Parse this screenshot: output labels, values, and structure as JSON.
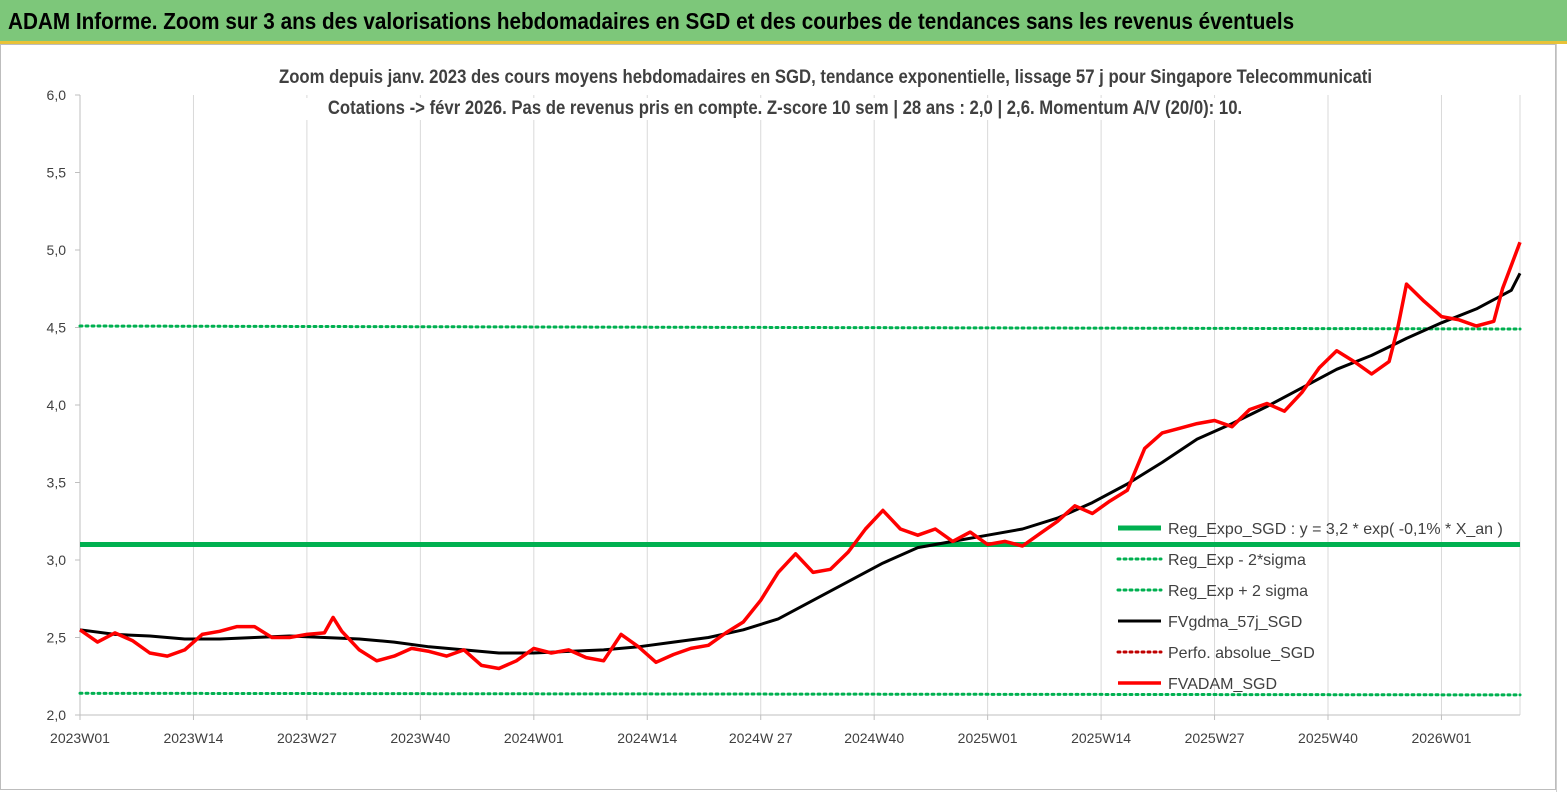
{
  "banner": {
    "title": "ADAM Informe. Zoom sur 3 ans des valorisations hebdomadaires en SGD et des courbes de tendances sans les revenus éventuels"
  },
  "colors": {
    "banner_bg": "#7dc77a",
    "regexpo": "#00b050",
    "fvgdma": "#000000",
    "fvadam": "#ff0000",
    "perfo": "#c00000"
  },
  "chart_data": {
    "type": "line",
    "title": "Zoom depuis janv. 2023 des cours moyens hebdomadaires en SGD, tendance exponentielle, lissage 57 j pour Singapore Telecommunicati",
    "subtitle": "Cotations -> févr 2026.  Pas de revenus pris en compte. Z-score 10 sem  | 28 ans : 2,0 | 2,6. Momentum A/V (20/0): 10.",
    "ylim": [
      2.0,
      6.0
    ],
    "yticks": [
      "2,0",
      "2,5",
      "3,0",
      "3,5",
      "4,0",
      "4,5",
      "5,0",
      "5,5",
      "6,0"
    ],
    "xticks": [
      "2023W01",
      "2023W14",
      "2023W27",
      "2023W40",
      "2024W01",
      "2024W14",
      "2024W 27",
      "2024W40",
      "2025W01",
      "2025W14",
      "2025W27",
      "2025W40",
      "2026W01"
    ],
    "grid": "vertical",
    "legend_position": "right",
    "series": [
      {
        "name": "Reg_Expo_SGD : y = 3,2  * exp( -0,1% *  X_an )",
        "style": "solid-thick",
        "color": "#00b050",
        "values": [
          [
            0,
            3.1
          ],
          [
            165,
            3.1
          ]
        ]
      },
      {
        "name": "Reg_Exp - 2*sigma",
        "style": "dotted",
        "color": "#00b050",
        "values": [
          [
            0,
            2.14
          ],
          [
            165,
            2.13
          ]
        ]
      },
      {
        "name": "Reg_Exp + 2 sigma",
        "style": "dotted",
        "color": "#00b050",
        "values": [
          [
            0,
            4.51
          ],
          [
            165,
            4.49
          ]
        ]
      },
      {
        "name": "FVgdma_57j_SGD",
        "style": "solid",
        "color": "#000000",
        "values": [
          [
            0,
            2.55
          ],
          [
            4,
            2.52
          ],
          [
            8,
            2.51
          ],
          [
            12,
            2.49
          ],
          [
            16,
            2.49
          ],
          [
            20,
            2.5
          ],
          [
            24,
            2.51
          ],
          [
            28,
            2.5
          ],
          [
            32,
            2.49
          ],
          [
            36,
            2.47
          ],
          [
            40,
            2.44
          ],
          [
            44,
            2.42
          ],
          [
            48,
            2.4
          ],
          [
            52,
            2.4
          ],
          [
            56,
            2.41
          ],
          [
            60,
            2.42
          ],
          [
            64,
            2.44
          ],
          [
            68,
            2.47
          ],
          [
            72,
            2.5
          ],
          [
            76,
            2.55
          ],
          [
            80,
            2.62
          ],
          [
            84,
            2.74
          ],
          [
            88,
            2.86
          ],
          [
            92,
            2.98
          ],
          [
            96,
            3.08
          ],
          [
            100,
            3.12
          ],
          [
            104,
            3.16
          ],
          [
            108,
            3.2
          ],
          [
            112,
            3.27
          ],
          [
            116,
            3.37
          ],
          [
            120,
            3.49
          ],
          [
            124,
            3.63
          ],
          [
            128,
            3.78
          ],
          [
            132,
            3.88
          ],
          [
            136,
            3.99
          ],
          [
            140,
            4.11
          ],
          [
            144,
            4.23
          ],
          [
            148,
            4.32
          ],
          [
            152,
            4.43
          ],
          [
            156,
            4.53
          ],
          [
            160,
            4.62
          ],
          [
            164,
            4.74
          ],
          [
            165,
            4.85
          ]
        ]
      },
      {
        "name": "Perfo. absolue_SGD",
        "style": "dotted",
        "color": "#c00000",
        "values": []
      },
      {
        "name": "FVADAM_SGD",
        "style": "solid",
        "color": "#ff0000",
        "values": [
          [
            0,
            2.55
          ],
          [
            2,
            2.47
          ],
          [
            4,
            2.53
          ],
          [
            6,
            2.48
          ],
          [
            8,
            2.4
          ],
          [
            10,
            2.38
          ],
          [
            12,
            2.42
          ],
          [
            14,
            2.52
          ],
          [
            16,
            2.54
          ],
          [
            18,
            2.57
          ],
          [
            20,
            2.57
          ],
          [
            22,
            2.5
          ],
          [
            24,
            2.5
          ],
          [
            26,
            2.52
          ],
          [
            28,
            2.53
          ],
          [
            29,
            2.63
          ],
          [
            30,
            2.54
          ],
          [
            32,
            2.42
          ],
          [
            34,
            2.35
          ],
          [
            36,
            2.38
          ],
          [
            38,
            2.43
          ],
          [
            40,
            2.41
          ],
          [
            42,
            2.38
          ],
          [
            44,
            2.42
          ],
          [
            46,
            2.32
          ],
          [
            48,
            2.3
          ],
          [
            50,
            2.35
          ],
          [
            52,
            2.43
          ],
          [
            54,
            2.4
          ],
          [
            56,
            2.42
          ],
          [
            58,
            2.37
          ],
          [
            60,
            2.35
          ],
          [
            62,
            2.52
          ],
          [
            64,
            2.44
          ],
          [
            66,
            2.34
          ],
          [
            68,
            2.39
          ],
          [
            70,
            2.43
          ],
          [
            72,
            2.45
          ],
          [
            74,
            2.53
          ],
          [
            76,
            2.6
          ],
          [
            78,
            2.74
          ],
          [
            80,
            2.92
          ],
          [
            82,
            3.04
          ],
          [
            84,
            2.92
          ],
          [
            86,
            2.94
          ],
          [
            88,
            3.05
          ],
          [
            90,
            3.2
          ],
          [
            92,
            3.32
          ],
          [
            94,
            3.2
          ],
          [
            96,
            3.16
          ],
          [
            98,
            3.2
          ],
          [
            100,
            3.12
          ],
          [
            102,
            3.18
          ],
          [
            104,
            3.1
          ],
          [
            106,
            3.12
          ],
          [
            108,
            3.09
          ],
          [
            110,
            3.17
          ],
          [
            112,
            3.25
          ],
          [
            114,
            3.35
          ],
          [
            116,
            3.3
          ],
          [
            118,
            3.38
          ],
          [
            120,
            3.45
          ],
          [
            122,
            3.72
          ],
          [
            124,
            3.82
          ],
          [
            126,
            3.85
          ],
          [
            128,
            3.88
          ],
          [
            130,
            3.9
          ],
          [
            132,
            3.86
          ],
          [
            134,
            3.97
          ],
          [
            136,
            4.01
          ],
          [
            138,
            3.96
          ],
          [
            140,
            4.08
          ],
          [
            142,
            4.24
          ],
          [
            144,
            4.35
          ],
          [
            146,
            4.28
          ],
          [
            148,
            4.2
          ],
          [
            150,
            4.28
          ],
          [
            151,
            4.5
          ],
          [
            152,
            4.78
          ],
          [
            154,
            4.67
          ],
          [
            156,
            4.57
          ],
          [
            158,
            4.55
          ],
          [
            160,
            4.51
          ],
          [
            162,
            4.54
          ],
          [
            163,
            4.75
          ],
          [
            165,
            5.05
          ]
        ]
      }
    ]
  }
}
